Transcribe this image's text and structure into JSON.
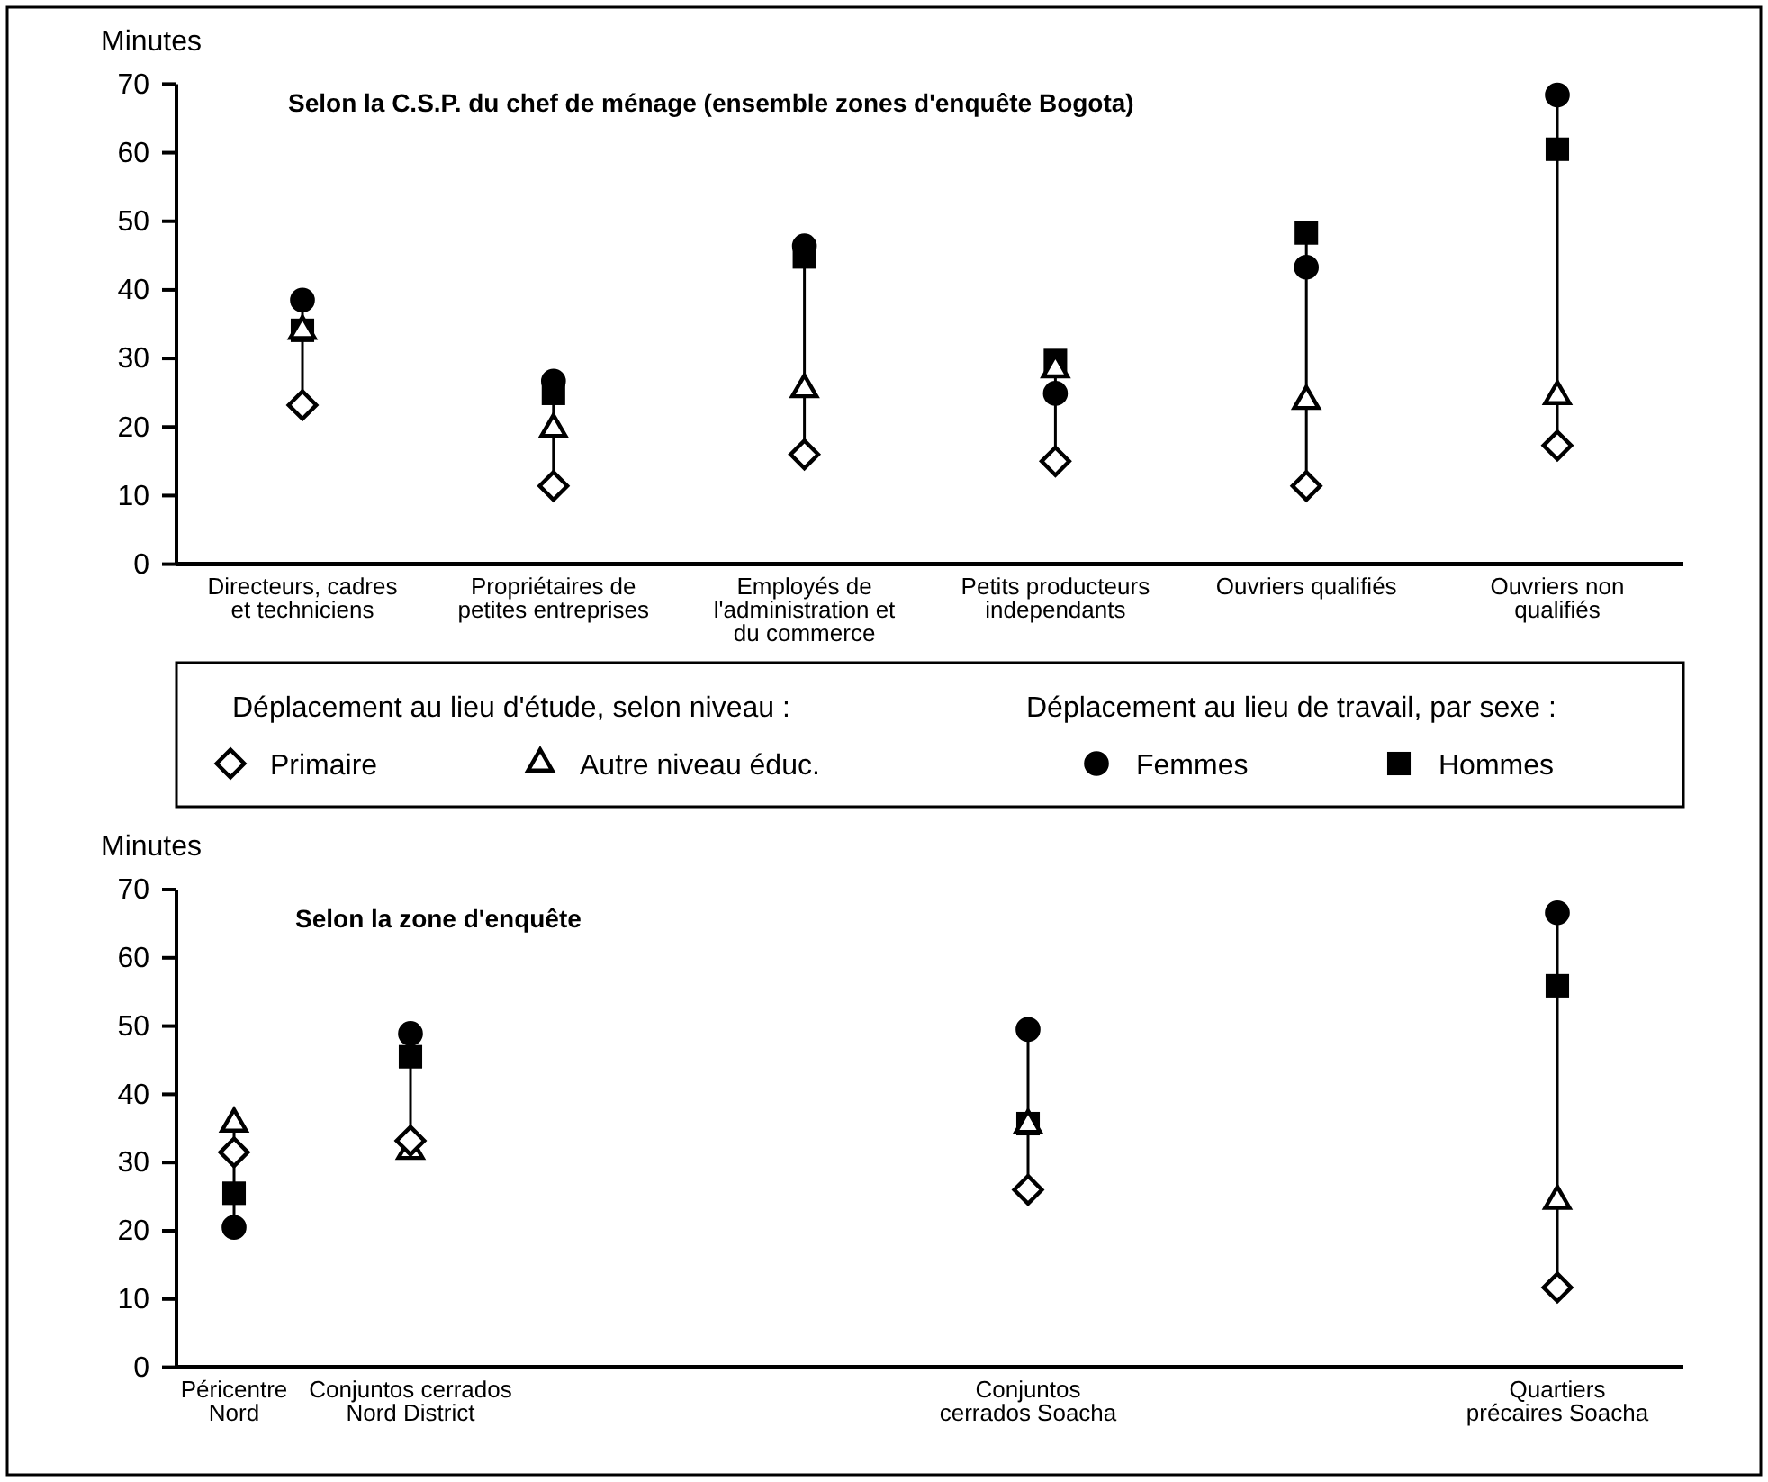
{
  "chart_data": [
    {
      "type": "scatter",
      "title": "Selon la C.S.P. du chef de ménage (ensemble zones d'enquête Bogota)",
      "ylabel": "Minutes",
      "categories": [
        "Directeurs, cadres et techniciens",
        "Propriétaires de petites entreprises",
        "Employés de l'administration et du commerce",
        "Petits producteurs independants",
        "Ouvriers qualifiés",
        "Ouvriers non qualifiés"
      ],
      "series": [
        {
          "name": "Primaire",
          "color": "#000000",
          "marker": "diamond",
          "values": [
            23.2,
            11.4,
            16,
            15,
            11.4,
            17.3
          ]
        },
        {
          "name": "Autre niveau éduc.",
          "color": "#000000",
          "marker": "triangle",
          "values": [
            34,
            19.7,
            25.5,
            28.4,
            23.8,
            24.5
          ]
        },
        {
          "name": "Femmes",
          "color": "#000000",
          "marker": "circle",
          "values": [
            38.5,
            26.7,
            46.4,
            24.9,
            43.3,
            68.4
          ]
        },
        {
          "name": "Hommes",
          "color": "#000000",
          "marker": "square",
          "values": [
            34.1,
            24.9,
            44.8,
            29.7,
            48.3,
            60.5
          ]
        }
      ],
      "annotations": [
        "Déplacement au lieu d'étude, selon niveau :",
        "Déplacement au lieu de travail, par sexe :"
      ],
      "ylim": [
        0,
        70
      ],
      "yticks": [
        0,
        10,
        20,
        30,
        40,
        50,
        60,
        70
      ],
      "legend": "bottom"
    },
    {
      "type": "scatter",
      "title": "Selon la zone d'enquête",
      "ylabel": "Minutes",
      "categories": [
        "Péricentre Nord",
        null,
        "Conjuntos cerrados Nord District",
        null,
        null,
        null,
        null,
        null,
        null,
        "Conjuntos cerrados Soacha",
        null,
        null,
        null,
        null,
        null,
        "Quartiers précaires Soacha"
      ],
      "series": [
        {
          "color": "#000000",
          "marker": "diamond",
          "values": [
            31.5,
            null,
            33.2,
            null,
            null,
            null,
            null,
            null,
            null,
            26,
            null,
            null,
            null,
            null,
            null,
            11.7
          ]
        },
        {
          "color": "#000000",
          "marker": "triangle",
          "values": [
            35.7,
            null,
            31.7,
            null,
            null,
            null,
            null,
            null,
            null,
            35.5,
            null,
            null,
            null,
            null,
            null,
            24.4
          ]
        },
        {
          "color": "#000000",
          "marker": "circle",
          "values": [
            20.5,
            null,
            48.9,
            null,
            null,
            null,
            null,
            null,
            null,
            49.5,
            null,
            null,
            null,
            null,
            null,
            66.6
          ]
        },
        {
          "color": "#000000",
          "marker": "square",
          "values": [
            25.5,
            null,
            45.5,
            null,
            null,
            null,
            null,
            null,
            null,
            35.7,
            null,
            null,
            null,
            null,
            null,
            55.9
          ]
        }
      ],
      "ylim": [
        0,
        70
      ],
      "yticks": [
        0,
        10,
        20,
        30,
        40,
        50,
        60,
        70
      ],
      "legend": false
    }
  ]
}
